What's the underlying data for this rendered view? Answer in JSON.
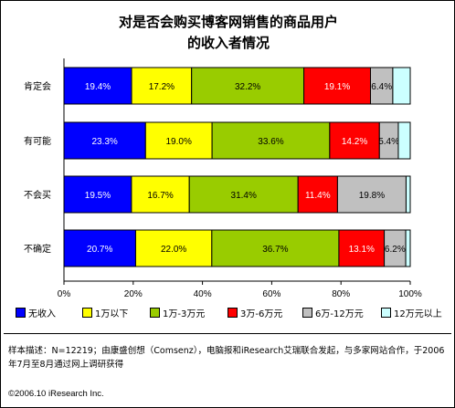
{
  "chart_data": {
    "type": "bar",
    "orientation": "horizontal",
    "stacked": "percent",
    "title": "对是否会购买博客网销售的商品用户\n的收入者情况",
    "categories": [
      "肯定会",
      "有可能",
      "不会买",
      "不确定"
    ],
    "series": [
      {
        "name": "无收入",
        "color": "#0000ff",
        "values": [
          19.4,
          23.3,
          19.5,
          20.7
        ],
        "labels": [
          "19.4%",
          "23.3%",
          "19.5%",
          "20.7%"
        ]
      },
      {
        "name": "1万以下",
        "color": "#ffff00",
        "values": [
          17.2,
          19.0,
          16.7,
          22.0
        ],
        "labels": [
          "17.2%",
          "19.0%",
          "16.7%",
          "22.0%"
        ]
      },
      {
        "name": "1万-3万元",
        "color": "#99cc00",
        "values": [
          32.2,
          33.6,
          31.4,
          36.7
        ],
        "labels": [
          "32.2%",
          "33.6%",
          "31.4%",
          "36.7%"
        ]
      },
      {
        "name": "3万-6万元",
        "color": "#ff0000",
        "values": [
          19.1,
          14.2,
          11.4,
          13.1
        ],
        "labels": [
          "19.1%",
          "14.2%",
          "11.4%",
          "13.1%"
        ]
      },
      {
        "name": "6万-12万元",
        "color": "#c0c0c0",
        "values": [
          6.4,
          5.4,
          19.8,
          6.2
        ],
        "labels": [
          "6.4%",
          "5.4%",
          "19.8%",
          "6.2%"
        ]
      },
      {
        "name": "12万元以上",
        "color": "#ccffff",
        "values": [
          5.0,
          3.4,
          1.2,
          1.3
        ],
        "labels": [
          "",
          "",
          "",
          ""
        ]
      }
    ],
    "x_ticks": [
      "0%",
      "20%",
      "40%",
      "60%",
      "80%",
      "100%"
    ],
    "xlim": [
      0,
      100
    ],
    "grid": false,
    "legend_position": "bottom"
  },
  "note": "样本描述：N=12219；由康盛创想（Comsenz），电脑报和iResearch艾瑞联合发起，与多家网站合作，于2006年7月至8月通过网上调研获得",
  "copyright": "©2006.10 iResearch Inc."
}
